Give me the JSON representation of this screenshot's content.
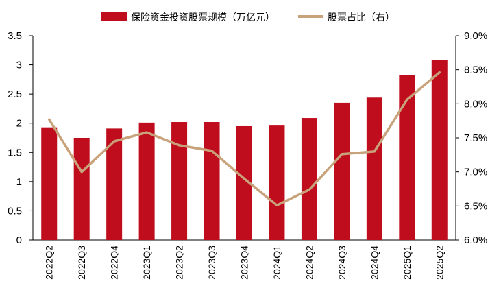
{
  "chart_data": {
    "type": "bar+line",
    "categories": [
      "2022Q2",
      "2022Q3",
      "2022Q4",
      "2023Q1",
      "2023Q2",
      "2023Q3",
      "2023Q4",
      "2024Q1",
      "2024Q2",
      "2024Q3",
      "2024Q4",
      "2025Q1",
      "2025Q2"
    ],
    "series": [
      {
        "name": "保险资金投资股票规模（万亿元）",
        "type": "bar",
        "axis": "left",
        "color": "#c00d1e",
        "values": [
          1.93,
          1.75,
          1.91,
          2.01,
          2.02,
          2.02,
          1.95,
          1.96,
          2.09,
          2.35,
          2.44,
          2.83,
          3.08
        ]
      },
      {
        "name": "股票占比（右）",
        "type": "line",
        "axis": "right",
        "color": "#c8a27a",
        "values": [
          7.77,
          7.0,
          7.45,
          7.58,
          7.39,
          7.31,
          6.9,
          6.51,
          6.74,
          7.26,
          7.3,
          8.06,
          8.46
        ]
      }
    ],
    "y_left": {
      "min": 0,
      "max": 3.5,
      "step": 0.5,
      "tick_labels": [
        "0",
        "0.5",
        "1",
        "1.5",
        "2",
        "2.5",
        "3",
        "3.5"
      ]
    },
    "y_right": {
      "min": 6.0,
      "max": 9.0,
      "step": 0.5,
      "tick_labels": [
        "6.0%",
        "6.5%",
        "7.0%",
        "7.5%",
        "8.0%",
        "8.5%",
        "9.0%"
      ]
    },
    "grid": false,
    "legend_position": "top-center"
  }
}
